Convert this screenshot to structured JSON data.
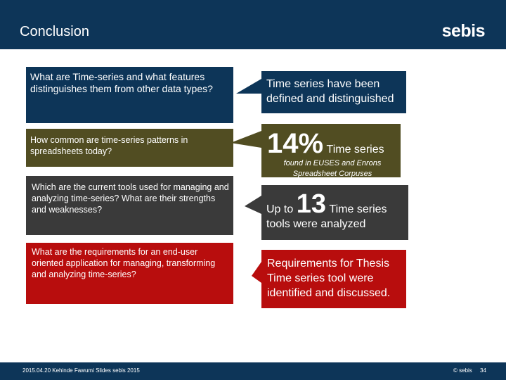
{
  "header": {
    "title": "Conclusion",
    "logo": "sebis"
  },
  "rows": [
    {
      "question": "What are Time-series and what features distinguishes them from other data types?",
      "answer": "Time series have been defined and distinguished"
    },
    {
      "question": "How common are time-series patterns in spreadsheets today?",
      "big": "14%",
      "answer_suffix": "Time series",
      "note": "found in EUSES and Enrons Spreadsheet Corpuses"
    },
    {
      "question": "Which are the current tools used for managing and analyzing time-series? What are their strengths and weaknesses?",
      "prefix": "Up to",
      "big": "13",
      "answer_suffix": "Time series",
      "answer_line2": "tools were analyzed"
    },
    {
      "question": "What are the requirements for an end-user oriented application for managing, transforming and analyzing time-series?",
      "answer": "Requirements for Thesis Time series tool were identified and discussed."
    }
  ],
  "footer": {
    "left": "2015.04.20 Kehinde Fawumi Slides sebis 2015",
    "right": "© sebis",
    "page": "34"
  },
  "colors": {
    "navy": "#0d3558",
    "olive": "#514d22",
    "dark": "#3a3a3a",
    "red": "#b80d0d"
  }
}
